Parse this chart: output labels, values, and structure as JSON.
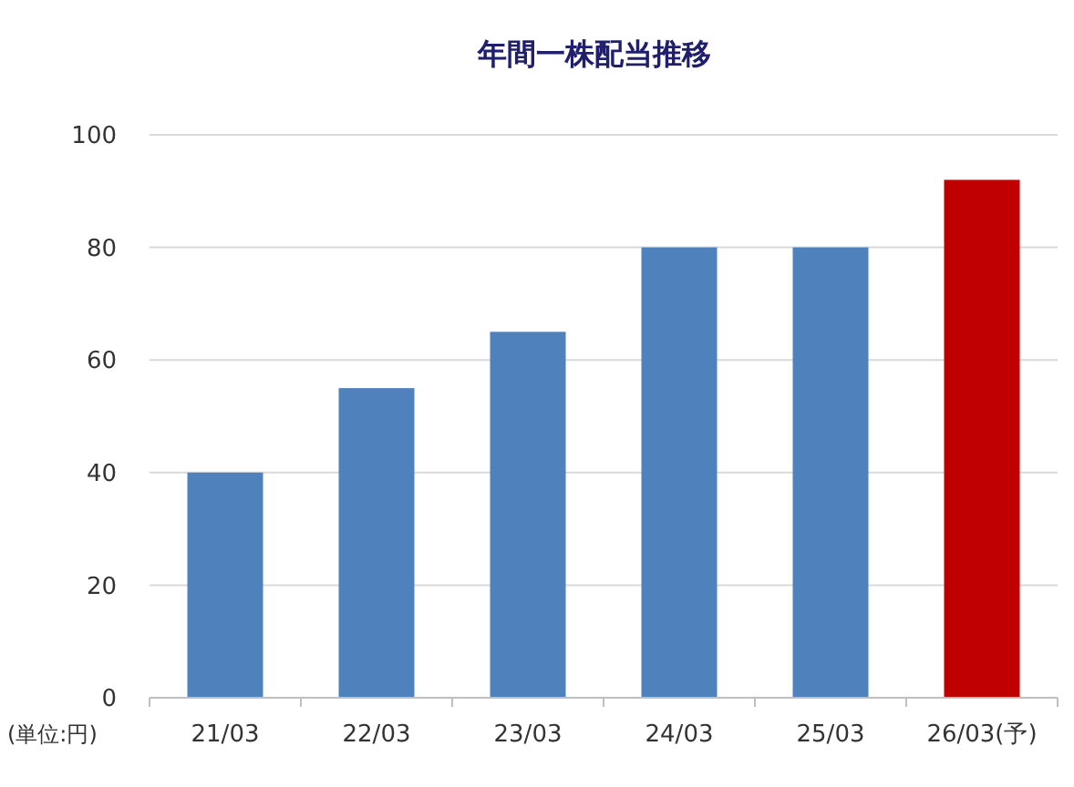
{
  "chart_data": {
    "type": "bar",
    "title": "年間一株配当推移",
    "categories": [
      "21/03",
      "22/03",
      "23/03",
      "24/03",
      "25/03",
      "26/03(予)"
    ],
    "values": [
      40,
      55,
      65,
      80,
      80,
      92
    ],
    "colors": [
      "#4f81bd",
      "#4f81bd",
      "#4f81bd",
      "#4f81bd",
      "#4f81bd",
      "#c00000"
    ],
    "ylim": [
      0,
      100
    ],
    "yticks": [
      0,
      20,
      40,
      60,
      80,
      100
    ],
    "grid": "y",
    "annotations": [
      "(単位:円)"
    ]
  }
}
